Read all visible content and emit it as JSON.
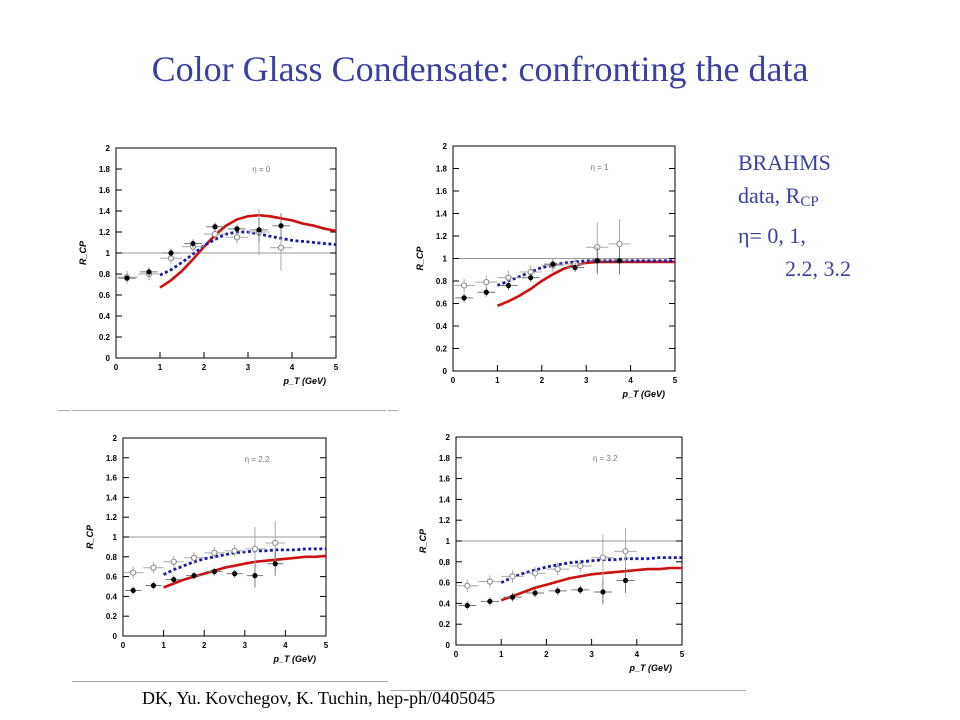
{
  "slide": {
    "title": "Color Glass Condensate: confronting the data",
    "side_text": {
      "line1": "BRAHMS",
      "line2_prefix": "data, R",
      "line2_sub": "CP",
      "line3": "η= 0,    1,",
      "line4": "2.2, 3.2"
    },
    "footer": "DK, Yu. Kovchegov, K. Tuchin, hep-ph/0405045"
  },
  "colors": {
    "title": "#3a3fa0",
    "solid_curve": "#cc1111",
    "dashed_curve": "#1a1aa6",
    "reference_line": "#999999"
  },
  "chart_data": [
    {
      "type": "scatter",
      "eta_label": "η = 0",
      "xlabel": "p_T  (GeV)",
      "ylabel": "R_CP",
      "xlim": [
        0,
        5
      ],
      "ylim": [
        0,
        2
      ],
      "xticks": [
        "0",
        "1",
        "2",
        "3",
        "4",
        "5"
      ],
      "yticks": [
        "0",
        "0.2",
        "0.4",
        "0.6",
        "0.8",
        "1",
        "1.2",
        "1.4",
        "1.6",
        "1.8",
        "2"
      ],
      "reference_line": 1.0,
      "filled_points": {
        "x": [
          0.25,
          0.75,
          1.25,
          1.75,
          2.25,
          2.75,
          3.25,
          3.75
        ],
        "y": [
          0.76,
          0.82,
          1.0,
          1.09,
          1.25,
          1.23,
          1.22,
          1.26
        ]
      },
      "open_points": {
        "x": [
          0.25,
          0.75,
          1.25,
          1.75,
          2.25,
          2.75,
          3.25,
          3.75
        ],
        "y": [
          0.77,
          0.8,
          0.95,
          1.06,
          1.18,
          1.15,
          1.2,
          1.05
        ]
      },
      "solid_curve": {
        "x": [
          1.0,
          1.25,
          1.5,
          1.75,
          2.0,
          2.25,
          2.5,
          2.75,
          3.0,
          3.25,
          3.5,
          3.75,
          4.0,
          4.25,
          4.5,
          4.75,
          5.0
        ],
        "y": [
          0.67,
          0.74,
          0.83,
          0.94,
          1.06,
          1.17,
          1.26,
          1.32,
          1.35,
          1.36,
          1.35,
          1.33,
          1.31,
          1.28,
          1.26,
          1.23,
          1.21
        ]
      },
      "dashed_curve": {
        "x": [
          1.0,
          1.25,
          1.5,
          1.75,
          2.0,
          2.25,
          2.5,
          2.75,
          3.0,
          3.25,
          3.5,
          3.75,
          4.0,
          4.25,
          4.5,
          4.75,
          5.0
        ],
        "y": [
          0.79,
          0.84,
          0.91,
          0.99,
          1.07,
          1.13,
          1.18,
          1.2,
          1.2,
          1.18,
          1.16,
          1.14,
          1.12,
          1.11,
          1.1,
          1.09,
          1.08
        ]
      }
    },
    {
      "type": "scatter",
      "eta_label": "η = 1",
      "xlabel": "p_T  (GeV)",
      "ylabel": "R_CP",
      "xlim": [
        0,
        5
      ],
      "ylim": [
        0,
        2
      ],
      "xticks": [
        "0",
        "1",
        "2",
        "3",
        "4",
        "5"
      ],
      "yticks": [
        "0",
        "0.2",
        "0.4",
        "0.6",
        "0.8",
        "1",
        "1.2",
        "1.4",
        "1.6",
        "1.8",
        "2"
      ],
      "reference_line": 1.0,
      "filled_points": {
        "x": [
          0.25,
          0.75,
          1.25,
          1.75,
          2.25,
          2.75,
          3.25,
          3.75
        ],
        "y": [
          0.65,
          0.7,
          0.76,
          0.83,
          0.95,
          0.92,
          0.98,
          0.98
        ]
      },
      "open_points": {
        "x": [
          0.25,
          0.75,
          1.25,
          1.75,
          2.25,
          2.75,
          3.25,
          3.75
        ],
        "y": [
          0.76,
          0.79,
          0.83,
          0.88,
          0.94,
          0.95,
          1.1,
          1.13
        ]
      },
      "solid_curve": {
        "x": [
          1.0,
          1.25,
          1.5,
          1.75,
          2.0,
          2.25,
          2.5,
          2.75,
          3.0,
          3.25,
          3.5,
          3.75,
          4.0,
          4.25,
          4.5,
          4.75,
          5.0
        ],
        "y": [
          0.58,
          0.62,
          0.67,
          0.73,
          0.8,
          0.86,
          0.91,
          0.94,
          0.96,
          0.97,
          0.97,
          0.97,
          0.97,
          0.97,
          0.97,
          0.97,
          0.97
        ]
      },
      "dashed_curve": {
        "x": [
          1.0,
          1.25,
          1.5,
          1.75,
          2.0,
          2.25,
          2.5,
          2.75,
          3.0,
          3.25,
          3.5,
          3.75,
          4.0,
          4.25,
          4.5,
          4.75,
          5.0
        ],
        "y": [
          0.76,
          0.8,
          0.84,
          0.88,
          0.92,
          0.94,
          0.96,
          0.97,
          0.98,
          0.98,
          0.98,
          0.98,
          0.98,
          0.98,
          0.98,
          0.98,
          0.98
        ]
      }
    },
    {
      "type": "scatter",
      "eta_label": "η = 2.2",
      "xlabel": "p_T  (GeV)",
      "ylabel": "R_CP",
      "xlim": [
        0,
        5
      ],
      "ylim": [
        0,
        2
      ],
      "xticks": [
        "0",
        "1",
        "2",
        "3",
        "4",
        "5"
      ],
      "yticks": [
        "0",
        "0.2",
        "0.4",
        "0.6",
        "0.8",
        "1",
        "1.2",
        "1.4",
        "1.6",
        "1.8",
        "2"
      ],
      "reference_line": 1.0,
      "filled_points": {
        "x": [
          0.25,
          0.75,
          1.25,
          1.75,
          2.25,
          2.75,
          3.25,
          3.75
        ],
        "y": [
          0.46,
          0.51,
          0.57,
          0.61,
          0.65,
          0.63,
          0.61,
          0.73
        ]
      },
      "open_points": {
        "x": [
          0.25,
          0.75,
          1.25,
          1.75,
          2.25,
          2.75,
          3.25,
          3.75
        ],
        "y": [
          0.64,
          0.69,
          0.75,
          0.79,
          0.84,
          0.86,
          0.88,
          0.94
        ]
      },
      "solid_curve": {
        "x": [
          1.0,
          1.25,
          1.5,
          1.75,
          2.0,
          2.25,
          2.5,
          2.75,
          3.0,
          3.25,
          3.5,
          3.75,
          4.0,
          4.25,
          4.5,
          4.75,
          5.0
        ],
        "y": [
          0.49,
          0.53,
          0.57,
          0.6,
          0.63,
          0.66,
          0.69,
          0.71,
          0.73,
          0.75,
          0.76,
          0.77,
          0.78,
          0.79,
          0.8,
          0.8,
          0.81
        ]
      },
      "dashed_curve": {
        "x": [
          1.0,
          1.25,
          1.5,
          1.75,
          2.0,
          2.25,
          2.5,
          2.75,
          3.0,
          3.25,
          3.5,
          3.75,
          4.0,
          4.25,
          4.5,
          4.75,
          5.0
        ],
        "y": [
          0.62,
          0.67,
          0.71,
          0.75,
          0.78,
          0.8,
          0.82,
          0.84,
          0.85,
          0.86,
          0.86,
          0.87,
          0.87,
          0.87,
          0.88,
          0.88,
          0.88
        ]
      }
    },
    {
      "type": "scatter",
      "eta_label": "η = 3.2",
      "xlabel": "p_T  (GeV)",
      "ylabel": "R_CP",
      "xlim": [
        0,
        5
      ],
      "ylim": [
        0,
        2
      ],
      "xticks": [
        "0",
        "1",
        "2",
        "3",
        "4",
        "5"
      ],
      "yticks": [
        "0",
        "0.2",
        "0.4",
        "0.6",
        "0.8",
        "1",
        "1.2",
        "1.4",
        "1.6",
        "1.8",
        "2"
      ],
      "reference_line": 1.0,
      "filled_points": {
        "x": [
          0.25,
          0.75,
          1.25,
          1.75,
          2.25,
          2.75,
          3.25,
          3.75
        ],
        "y": [
          0.38,
          0.42,
          0.46,
          0.5,
          0.52,
          0.53,
          0.51,
          0.62
        ]
      },
      "open_points": {
        "x": [
          0.25,
          0.75,
          1.25,
          1.75,
          2.25,
          2.75,
          3.25,
          3.75
        ],
        "y": [
          0.57,
          0.61,
          0.66,
          0.69,
          0.73,
          0.76,
          0.84,
          0.9
        ]
      },
      "solid_curve": {
        "x": [
          1.0,
          1.25,
          1.5,
          1.75,
          2.0,
          2.25,
          2.5,
          2.75,
          3.0,
          3.25,
          3.5,
          3.75,
          4.0,
          4.25,
          4.5,
          4.75,
          5.0
        ],
        "y": [
          0.43,
          0.47,
          0.51,
          0.55,
          0.58,
          0.61,
          0.64,
          0.66,
          0.68,
          0.69,
          0.7,
          0.71,
          0.72,
          0.73,
          0.73,
          0.74,
          0.74
        ]
      },
      "dashed_curve": {
        "x": [
          1.0,
          1.25,
          1.5,
          1.75,
          2.0,
          2.25,
          2.5,
          2.75,
          3.0,
          3.25,
          3.5,
          3.75,
          4.0,
          4.25,
          4.5,
          4.75,
          5.0
        ],
        "y": [
          0.6,
          0.65,
          0.69,
          0.72,
          0.75,
          0.77,
          0.79,
          0.8,
          0.81,
          0.82,
          0.82,
          0.83,
          0.83,
          0.83,
          0.84,
          0.84,
          0.84
        ]
      }
    }
  ]
}
